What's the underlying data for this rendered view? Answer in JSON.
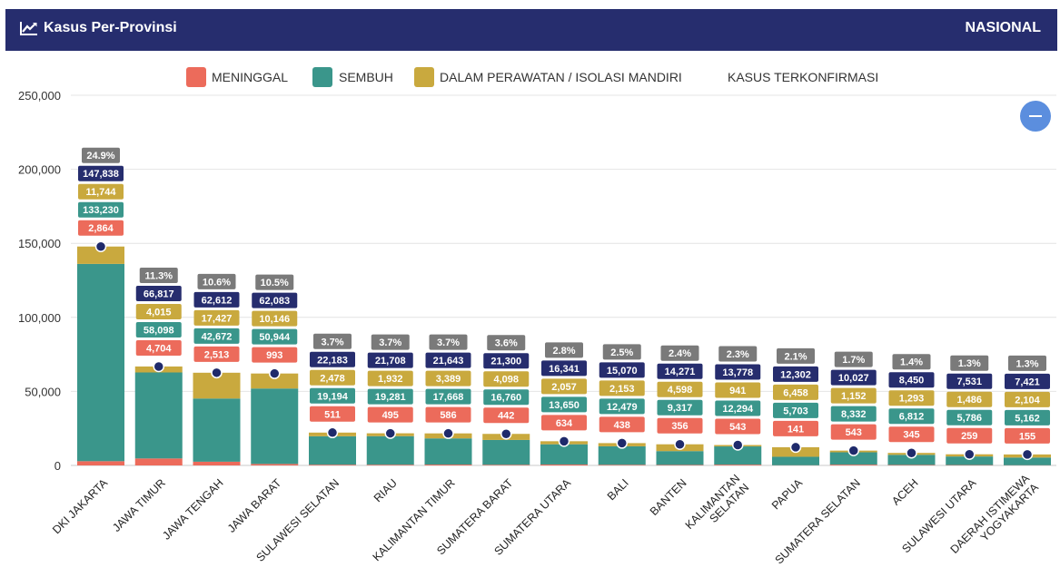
{
  "header": {
    "title": "Kasus Per-Provinsi",
    "title_icon": "line-chart-icon",
    "scope": "NASIONAL"
  },
  "colors": {
    "header_bg": "#262d6e",
    "meninggal": "#ec6b5b",
    "sembuh": "#3a968b",
    "dalam_perawatan": "#c9a93e",
    "kasus_terkonfirmasi": "#262d6e",
    "percent_label": "#7a7a7a",
    "marker": "#1f2a6b",
    "zoom_button": "#5b8ede"
  },
  "zoom_button": {
    "icon": "minus-icon",
    "label": "−"
  },
  "chart_data": {
    "type": "bar",
    "stacked": true,
    "legend": [
      "MENINGGAL",
      "SEMBUH",
      "DALAM PERAWATAN / ISOLASI MANDIRI",
      "KASUS TERKONFIRMASI"
    ],
    "legend_position": "top-center",
    "ylim": [
      0,
      250000
    ],
    "yticks": [
      "0",
      "50,000",
      "100,000",
      "150,000",
      "200,000",
      "250,000"
    ],
    "ytick_values": [
      0,
      50000,
      100000,
      150000,
      200000,
      250000
    ],
    "grid": true,
    "categories": [
      [
        "DKI JAKARTA"
      ],
      [
        "JAWA TIMUR"
      ],
      [
        "JAWA TENGAH"
      ],
      [
        "JAWA BARAT"
      ],
      [
        "SULAWESI SELATAN"
      ],
      [
        "RIAU"
      ],
      [
        "KALIMANTAN TIMUR"
      ],
      [
        "SUMATERA BARAT"
      ],
      [
        "SUMATERA UTARA"
      ],
      [
        "BALI"
      ],
      [
        "BANTEN"
      ],
      [
        "KALIMANTAN",
        "SELATAN"
      ],
      [
        "PAPUA"
      ],
      [
        "SUMATERA SELATAN"
      ],
      [
        "ACEH"
      ],
      [
        "SULAWESI UTARA"
      ],
      [
        "DAERAH ISTIMEWA",
        "YOGYAKARTA"
      ]
    ],
    "series": [
      {
        "name": "MENINGGAL",
        "values": [
          2864,
          4704,
          2513,
          993,
          511,
          495,
          586,
          442,
          634,
          438,
          356,
          543,
          141,
          543,
          345,
          259,
          155
        ],
        "labels": [
          "2,864",
          "4,704",
          "2,513",
          "993",
          "511",
          "495",
          "586",
          "442",
          "634",
          "438",
          "356",
          "543",
          "141",
          "543",
          "345",
          "259",
          "155"
        ]
      },
      {
        "name": "SEMBUH",
        "values": [
          133230,
          58098,
          42672,
          50944,
          19194,
          19281,
          17668,
          16760,
          13650,
          12479,
          9317,
          12294,
          5703,
          8332,
          6812,
          5786,
          5162
        ],
        "labels": [
          "133,230",
          "58,098",
          "42,672",
          "50,944",
          "19,194",
          "19,281",
          "17,668",
          "16,760",
          "13,650",
          "12,479",
          "9,317",
          "12,294",
          "5,703",
          "8,332",
          "6,812",
          "5,786",
          "5,162"
        ]
      },
      {
        "name": "DALAM PERAWATAN / ISOLASI MANDIRI",
        "values": [
          11744,
          4015,
          17427,
          10146,
          2478,
          1932,
          3389,
          4098,
          2057,
          2153,
          4598,
          941,
          6458,
          1152,
          1293,
          1486,
          2104
        ],
        "labels": [
          "11,744",
          "4,015",
          "17,427",
          "10,146",
          "2,478",
          "1,932",
          "3,389",
          "4,098",
          "2,057",
          "2,153",
          "4,598",
          "941",
          "6,458",
          "1,152",
          "1,293",
          "1,486",
          "2,104"
        ]
      }
    ],
    "total": {
      "name": "KASUS TERKONFIRMASI",
      "values": [
        147838,
        66817,
        62612,
        62083,
        22183,
        21708,
        21643,
        21300,
        16341,
        15070,
        14271,
        13778,
        12302,
        10027,
        8450,
        7531,
        7421
      ],
      "labels": [
        "147,838",
        "66,817",
        "62,612",
        "62,083",
        "22,183",
        "21,708",
        "21,643",
        "21,300",
        "16,341",
        "15,070",
        "14,271",
        "13,778",
        "12,302",
        "10,027",
        "8,450",
        "7,531",
        "7,421"
      ]
    },
    "percent_labels": [
      "24.9%",
      "11.3%",
      "10.6%",
      "10.5%",
      "3.7%",
      "3.7%",
      "3.7%",
      "3.6%",
      "2.8%",
      "2.5%",
      "2.4%",
      "2.3%",
      "2.1%",
      "1.7%",
      "1.4%",
      "1.3%",
      "1.3%"
    ]
  }
}
